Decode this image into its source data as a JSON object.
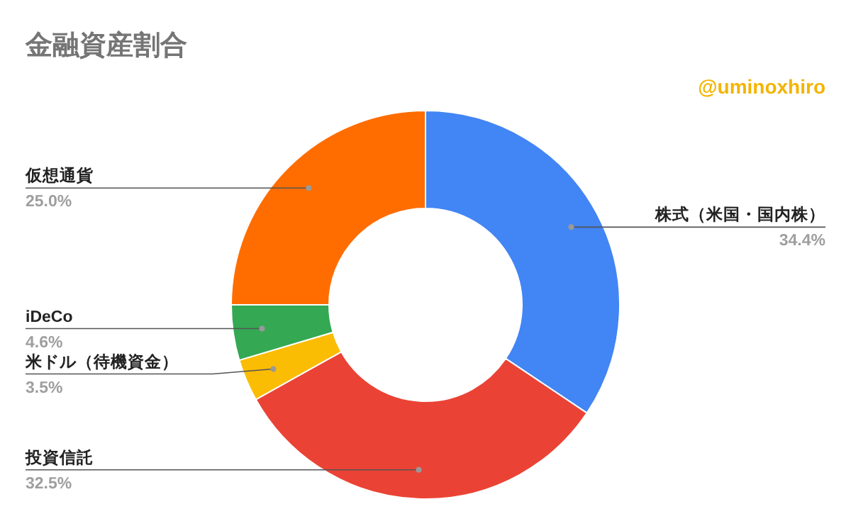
{
  "chart_data": {
    "type": "donut",
    "title": "金融資産割合",
    "annotations": [
      "@uminoxhiro"
    ],
    "categories": [
      "株式（米国・国内株）",
      "投資信託",
      "米ドル（待機資金）",
      "iDeCo",
      "仮想通貨"
    ],
    "values": [
      34.4,
      32.5,
      3.5,
      4.6,
      25.0
    ],
    "colors": [
      "#4285f4",
      "#ea4335",
      "#fbbc04",
      "#34a853",
      "#ff6d01"
    ],
    "value_labels": [
      "34.4%",
      "32.5%",
      "3.5%",
      "4.6%",
      "25.0%"
    ]
  }
}
